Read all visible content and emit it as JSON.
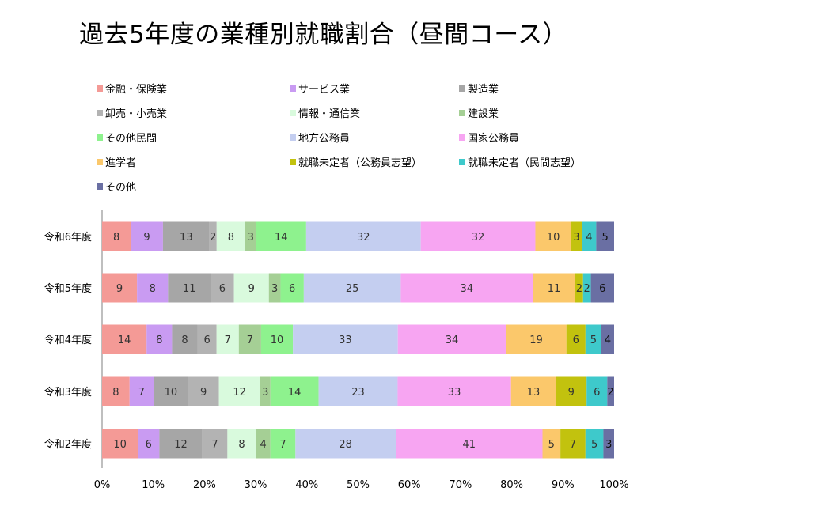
{
  "chart_data": {
    "type": "bar",
    "orientation": "horizontal",
    "stacked": "percent",
    "title": "過去5年度の業種別就職割合（昼間コース）",
    "categories": [
      "令和6年度",
      "令和5年度",
      "令和4年度",
      "令和3年度",
      "令和2年度"
    ],
    "x_ticks": [
      "0%",
      "10%",
      "20%",
      "30%",
      "40%",
      "50%",
      "60%",
      "70%",
      "80%",
      "90%",
      "100%"
    ],
    "xlim": [
      0,
      100
    ],
    "grid": false,
    "legend_position": "top",
    "series": [
      {
        "name": "金融・保険業",
        "color": "#f49a96",
        "values": [
          8,
          9,
          14,
          8,
          10
        ]
      },
      {
        "name": "サービス業",
        "color": "#c99bf2",
        "values": [
          9,
          8,
          8,
          7,
          6
        ]
      },
      {
        "name": "製造業",
        "color": "#a6a6a6",
        "values": [
          13,
          11,
          8,
          10,
          12
        ]
      },
      {
        "name": "卸売・小売業",
        "color": "#b3b3b3",
        "values": [
          2,
          6,
          6,
          9,
          7
        ]
      },
      {
        "name": "情報・通信業",
        "color": "#d9fadd",
        "values": [
          8,
          9,
          7,
          12,
          8
        ]
      },
      {
        "name": "建設業",
        "color": "#a5cf95",
        "values": [
          3,
          3,
          7,
          3,
          4
        ]
      },
      {
        "name": "その他民間",
        "color": "#8ef28e",
        "values": [
          14,
          6,
          10,
          14,
          7
        ]
      },
      {
        "name": "地方公務員",
        "color": "#c4cef0",
        "values": [
          32,
          25,
          33,
          23,
          28
        ]
      },
      {
        "name": "国家公務員",
        "color": "#f7a5f2",
        "values": [
          32,
          34,
          34,
          33,
          41
        ]
      },
      {
        "name": "進学者",
        "color": "#fbc86b",
        "values": [
          10,
          11,
          19,
          13,
          5
        ]
      },
      {
        "name": "就職未定者（公務員志望）",
        "color": "#c2c20e",
        "values": [
          3,
          2,
          6,
          9,
          7
        ]
      },
      {
        "name": "就職未定者（民間志望）",
        "color": "#3ec9cb",
        "values": [
          4,
          2,
          5,
          6,
          5
        ]
      },
      {
        "name": "その他",
        "color": "#6a6fa3",
        "values": [
          5,
          6,
          4,
          2,
          3
        ]
      }
    ]
  }
}
